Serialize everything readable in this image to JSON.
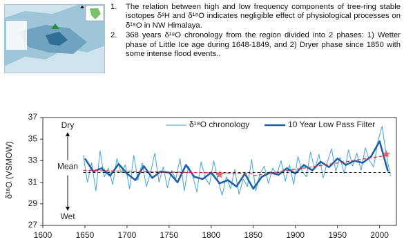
{
  "notes": [
    {
      "number": "1.",
      "text": "The relation between high and low frequency components of tree-ring stable isotopes δ²H and δ¹⁸O indicates negligible effect of physiological processes on δ¹⁸O  in NW Himalaya."
    },
    {
      "number": "2.",
      "text": "368 years δ¹⁸O chronology from the region divided into 2 phases: 1) Wetter phase of Little Ice age during 1648-1849, and 2) Dryer phase since 1850 with some intense flood events.."
    }
  ],
  "chart_data": {
    "type": "line",
    "y_label": "δ¹⁸O (VSMOW)",
    "xlim": [
      1600,
      2020
    ],
    "xticks": [
      1600,
      1650,
      1700,
      1750,
      1800,
      1850,
      1900,
      1950,
      2000
    ],
    "ylim": [
      27,
      37
    ],
    "yticks": [
      27,
      29,
      31,
      33,
      35,
      37
    ],
    "legend": "top",
    "series": [
      {
        "name": "δ¹⁸O chronology",
        "color": "#3fa4dc",
        "width": 1,
        "x": [
          1648,
          1653,
          1658,
          1663,
          1668,
          1673,
          1678,
          1683,
          1688,
          1693,
          1698,
          1703,
          1708,
          1713,
          1718,
          1723,
          1728,
          1733,
          1738,
          1743,
          1748,
          1753,
          1758,
          1763,
          1768,
          1773,
          1778,
          1783,
          1788,
          1793,
          1798,
          1803,
          1808,
          1813,
          1818,
          1823,
          1828,
          1833,
          1838,
          1843,
          1848,
          1853,
          1858,
          1863,
          1868,
          1873,
          1878,
          1883,
          1888,
          1893,
          1898,
          1903,
          1908,
          1913,
          1918,
          1923,
          1928,
          1933,
          1938,
          1943,
          1948,
          1953,
          1958,
          1963,
          1968,
          1973,
          1978,
          1983,
          1988,
          1993,
          1998,
          2003,
          2008,
          2013
        ],
        "values": [
          33.5,
          31.0,
          32.8,
          30.2,
          33.9,
          31.5,
          32.3,
          30.8,
          33.2,
          31.9,
          32.6,
          30.4,
          33.5,
          31.2,
          32.8,
          30.6,
          31.9,
          33.7,
          31.0,
          32.4,
          30.5,
          32.1,
          31.3,
          33.2,
          30.2,
          32.5,
          31.6,
          30.1,
          32.9,
          31.4,
          30.8,
          33.0,
          31.2,
          29.8,
          31.5,
          30.4,
          32.2,
          29.9,
          31.3,
          30.6,
          33.1,
          30.2,
          31.8,
          32.5,
          30.9,
          32.3,
          31.7,
          33.0,
          31.1,
          32.6,
          30.8,
          33.4,
          32.0,
          31.5,
          33.8,
          32.2,
          33.6,
          31.4,
          32.9,
          34.1,
          32.0,
          33.3,
          31.8,
          34.0,
          32.5,
          33.7,
          32.1,
          34.2,
          33.0,
          32.4,
          34.8,
          36.2,
          33.5,
          31.6
        ]
      },
      {
        "name": "10 Year Low Pass Filter",
        "color": "#1f5fa8",
        "width": 2.6,
        "x": [
          1650,
          1660,
          1670,
          1680,
          1690,
          1700,
          1710,
          1720,
          1730,
          1740,
          1750,
          1760,
          1770,
          1780,
          1790,
          1800,
          1810,
          1820,
          1830,
          1840,
          1850,
          1860,
          1870,
          1880,
          1890,
          1900,
          1910,
          1920,
          1930,
          1940,
          1950,
          1960,
          1970,
          1980,
          1990,
          2000,
          2010
        ],
        "values": [
          33.2,
          32.0,
          32.3,
          31.6,
          32.7,
          31.8,
          31.2,
          32.5,
          31.4,
          32.0,
          31.9,
          31.0,
          32.6,
          31.5,
          31.3,
          31.9,
          30.9,
          31.2,
          30.6,
          31.8,
          30.4,
          31.5,
          31.9,
          31.7,
          32.3,
          31.8,
          32.6,
          32.1,
          32.9,
          32.4,
          33.2,
          32.6,
          33.0,
          32.8,
          33.4,
          34.8,
          32.0
        ]
      }
    ],
    "mean_line": 31.9,
    "trend_lines": [
      {
        "x": [
          1648,
          1849
        ],
        "values": [
          32.1,
          31.8
        ],
        "color": "#e0303a"
      },
      {
        "x": [
          1850,
          2010
        ],
        "values": [
          31.6,
          33.5
        ],
        "color": "#e0303a"
      }
    ],
    "markers": {
      "x": [
        1810,
        2008
      ],
      "values": [
        31.7,
        33.6
      ],
      "color": "#e8495a"
    },
    "annotations": {
      "dry": "Dry",
      "wet": "Wet",
      "mean": "Mean"
    }
  }
}
